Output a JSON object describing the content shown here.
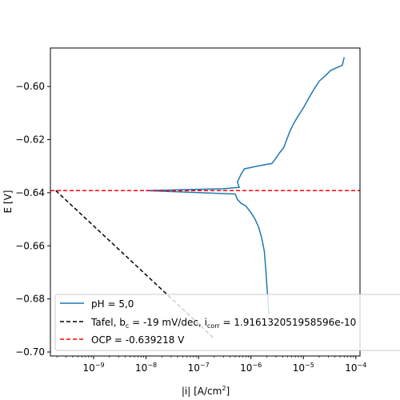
{
  "chart_data": {
    "type": "line",
    "title": "",
    "xlabel": "|i| [A/cm",
    "xlabel_sup": "2",
    "xlabel_end": "]",
    "ylabel": "E [V]",
    "xscale": "log",
    "xlim": [
      1.5e-10,
      0.00012
    ],
    "ylim": [
      -0.7015,
      -0.5855
    ],
    "grid": false,
    "legend_position": "lower-left",
    "xticks": [
      {
        "value": 1e-09,
        "label": "10",
        "exp": "−9"
      },
      {
        "value": 1e-08,
        "label": "10",
        "exp": "−8"
      },
      {
        "value": 1e-07,
        "label": "10",
        "exp": "−7"
      },
      {
        "value": 1e-06,
        "label": "10",
        "exp": "−6"
      },
      {
        "value": 1e-05,
        "label": "10",
        "exp": "−5"
      },
      {
        "value": 0.0001,
        "label": "10",
        "exp": "−4"
      }
    ],
    "yticks": [
      {
        "value": -0.7,
        "label": "−0.70"
      },
      {
        "value": -0.68,
        "label": "−0.68"
      },
      {
        "value": -0.66,
        "label": "−0.66"
      },
      {
        "value": -0.64,
        "label": "−0.64"
      },
      {
        "value": -0.62,
        "label": "−0.62"
      },
      {
        "value": -0.6,
        "label": "−0.60"
      }
    ],
    "series": [
      {
        "name": "pH = 5,0",
        "color": "#1f77b4",
        "style": "solid",
        "x": [
          2.2e-06,
          2.1e-06,
          2e-06,
          1.9e-06,
          1.8e-06,
          1.6e-06,
          1.4e-06,
          1.2e-06,
          1e-06,
          8e-07,
          6.5e-07,
          5.5e-07,
          5e-07,
          1e-08,
          3e-07,
          6e-07,
          5.5e-07,
          6.5e-07,
          7.5e-07,
          1e-06,
          1.3e-06,
          1.8e-06,
          2.5e-06,
          3e-06,
          3.5e-06,
          4.2e-06,
          4.8e-06,
          5.5e-06,
          6.5e-06,
          8e-06,
          1e-05,
          1.3e-05,
          1.6e-05,
          2e-05,
          2.6e-05,
          3.3e-05,
          4.2e-05,
          5.5e-05,
          6e-05
        ],
        "y": [
          -0.686,
          -0.68,
          -0.674,
          -0.668,
          -0.662,
          -0.657,
          -0.653,
          -0.65,
          -0.6475,
          -0.645,
          -0.644,
          -0.6425,
          -0.6405,
          -0.6392,
          -0.6385,
          -0.638,
          -0.636,
          -0.633,
          -0.631,
          -0.6305,
          -0.63,
          -0.6295,
          -0.629,
          -0.627,
          -0.625,
          -0.623,
          -0.62,
          -0.617,
          -0.614,
          -0.611,
          -0.608,
          -0.604,
          -0.601,
          -0.598,
          -0.596,
          -0.594,
          -0.593,
          -0.592,
          -0.589
        ]
      },
      {
        "name": "Tafel, b",
        "name_sub": "c",
        "name_mid": " = -19 mV/dec, i",
        "name_sub2": "corr",
        "name_end": " = 1.91613205195859​6e-10",
        "color": "#000000",
        "style": "dashed",
        "x": [
          1.9e-10,
          1.9e-07
        ],
        "y": [
          -0.6392,
          -0.6945
        ]
      },
      {
        "name": "OCP = -0.639218 V",
        "color": "#ff0000",
        "style": "dashed",
        "x": [
          1.5e-10,
          0.00012
        ],
        "y": [
          -0.639218,
          -0.639218
        ]
      }
    ]
  }
}
